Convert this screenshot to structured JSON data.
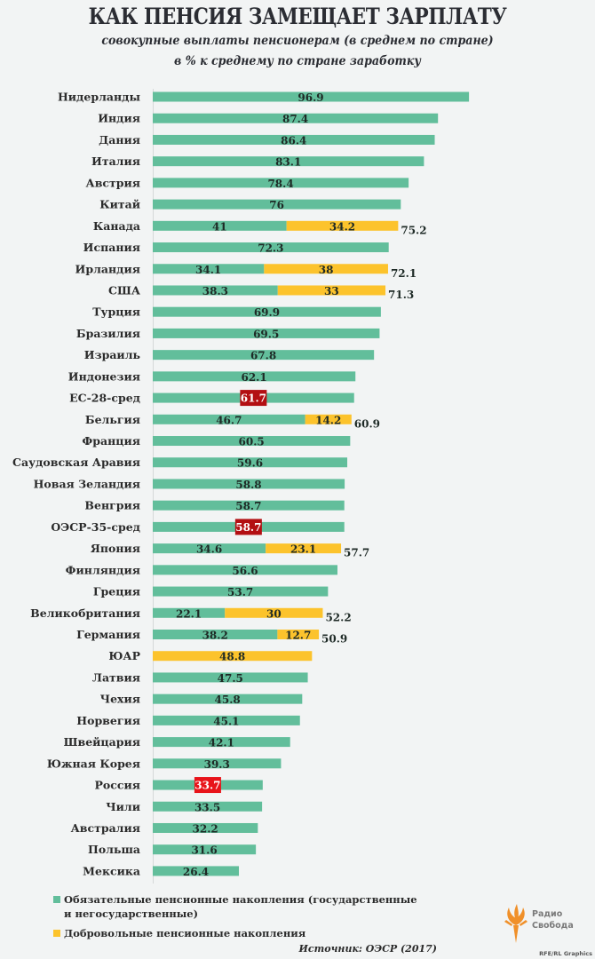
{
  "header": {
    "title": "КАК ПЕНСИЯ ЗАМЕЩАЕТ ЗАРПЛАТУ",
    "subtitle_line1": "совокупные выплаты пенсионерам (в среднем по стране)",
    "subtitle_line2": "в % к среднему по стране заработку"
  },
  "colors": {
    "mandatory": "#62be9b",
    "voluntary": "#fcc32c",
    "highlight_avg": "#b30f12",
    "highlight_russia": "#e8141a",
    "background": "#f2f4f4",
    "axis": "#d5d8d8"
  },
  "chart_data": {
    "type": "bar",
    "orientation": "horizontal",
    "stacked": true,
    "title": "КАК ПЕНСИЯ ЗАМЕЩАЕТ ЗАРПЛАТУ",
    "subtitle": "совокупные выплаты пенсионерам (в среднем по стране) в % к среднему по стране заработку",
    "xlabel": "",
    "ylabel": "",
    "xlim": [
      0,
      100
    ],
    "grid": false,
    "legend_position": "bottom-left",
    "series_names": [
      "Обязательные пенсионные накопления (государственные и негосударственные)",
      "Добровольные пенсионные накопления"
    ],
    "rows": [
      {
        "name": "Нидерланды",
        "mandatory": 96.9,
        "voluntary": null,
        "total": null,
        "highlight": null
      },
      {
        "name": "Индия",
        "mandatory": 87.4,
        "voluntary": null,
        "total": null,
        "highlight": null
      },
      {
        "name": "Дания",
        "mandatory": 86.4,
        "voluntary": null,
        "total": null,
        "highlight": null
      },
      {
        "name": "Италия",
        "mandatory": 83.1,
        "voluntary": null,
        "total": null,
        "highlight": null
      },
      {
        "name": "Австрия",
        "mandatory": 78.4,
        "voluntary": null,
        "total": null,
        "highlight": null
      },
      {
        "name": "Китай",
        "mandatory": 76,
        "voluntary": null,
        "total": null,
        "highlight": null
      },
      {
        "name": "Канада",
        "mandatory": 41,
        "voluntary": 34.2,
        "total": 75.2,
        "highlight": null
      },
      {
        "name": "Испания",
        "mandatory": 72.3,
        "voluntary": null,
        "total": null,
        "highlight": null
      },
      {
        "name": "Ирландия",
        "mandatory": 34.1,
        "voluntary": 38,
        "total": 72.1,
        "highlight": null
      },
      {
        "name": "США",
        "mandatory": 38.3,
        "voluntary": 33,
        "total": 71.3,
        "highlight": null
      },
      {
        "name": "Турция",
        "mandatory": 69.9,
        "voluntary": null,
        "total": null,
        "highlight": null
      },
      {
        "name": "Бразилия",
        "mandatory": 69.5,
        "voluntary": null,
        "total": null,
        "highlight": null
      },
      {
        "name": "Израиль",
        "mandatory": 67.8,
        "voluntary": null,
        "total": null,
        "highlight": null
      },
      {
        "name": "Индонезия",
        "mandatory": 62.1,
        "voluntary": null,
        "total": null,
        "highlight": null
      },
      {
        "name": "ЕС-28-сред",
        "mandatory": 61.7,
        "voluntary": null,
        "total": null,
        "highlight": "avg"
      },
      {
        "name": "Бельгия",
        "mandatory": 46.7,
        "voluntary": 14.2,
        "total": 60.9,
        "highlight": null
      },
      {
        "name": "Франция",
        "mandatory": 60.5,
        "voluntary": null,
        "total": null,
        "highlight": null
      },
      {
        "name": "Саудовская Аравия",
        "mandatory": 59.6,
        "voluntary": null,
        "total": null,
        "highlight": null
      },
      {
        "name": "Новая Зеландия",
        "mandatory": 58.8,
        "voluntary": null,
        "total": null,
        "highlight": null
      },
      {
        "name": "Венгрия",
        "mandatory": 58.7,
        "voluntary": null,
        "total": null,
        "highlight": null
      },
      {
        "name": "ОЭСР-35-сред",
        "mandatory": 58.7,
        "voluntary": null,
        "total": null,
        "highlight": "avg"
      },
      {
        "name": "Япония",
        "mandatory": 34.6,
        "voluntary": 23.1,
        "total": 57.7,
        "highlight": null
      },
      {
        "name": "Финляндия",
        "mandatory": 56.6,
        "voluntary": null,
        "total": null,
        "highlight": null
      },
      {
        "name": "Греция",
        "mandatory": 53.7,
        "voluntary": null,
        "total": null,
        "highlight": null
      },
      {
        "name": "Великобритания",
        "mandatory": 22.1,
        "voluntary": 30,
        "total": 52.2,
        "highlight": null
      },
      {
        "name": "Германия",
        "mandatory": 38.2,
        "voluntary": 12.7,
        "total": 50.9,
        "highlight": null
      },
      {
        "name": "ЮАР",
        "mandatory": null,
        "voluntary": 48.8,
        "total": null,
        "highlight": null
      },
      {
        "name": "Латвия",
        "mandatory": 47.5,
        "voluntary": null,
        "total": null,
        "highlight": null
      },
      {
        "name": "Чехия",
        "mandatory": 45.8,
        "voluntary": null,
        "total": null,
        "highlight": null
      },
      {
        "name": "Норвегия",
        "mandatory": 45.1,
        "voluntary": null,
        "total": null,
        "highlight": null
      },
      {
        "name": "Швейцария",
        "mandatory": 42.1,
        "voluntary": null,
        "total": null,
        "highlight": null
      },
      {
        "name": "Южная Корея",
        "mandatory": 39.3,
        "voluntary": null,
        "total": null,
        "highlight": null
      },
      {
        "name": "Россия",
        "mandatory": 33.7,
        "voluntary": null,
        "total": null,
        "highlight": "russia"
      },
      {
        "name": "Чили",
        "mandatory": 33.5,
        "voluntary": null,
        "total": null,
        "highlight": null
      },
      {
        "name": "Австралия",
        "mandatory": 32.2,
        "voluntary": null,
        "total": null,
        "highlight": null
      },
      {
        "name": "Польша",
        "mandatory": 31.6,
        "voluntary": null,
        "total": null,
        "highlight": null
      },
      {
        "name": "Мексика",
        "mandatory": 26.4,
        "voluntary": null,
        "total": null,
        "highlight": null
      }
    ]
  },
  "legend": {
    "items": [
      {
        "label": "Обязательные пенсионные накопления (государственные и негосударственные)",
        "color": "#62be9b"
      },
      {
        "label": "Добровольные пенсионные накопления",
        "color": "#fcc32c"
      }
    ]
  },
  "footer": {
    "source": "Источник: ОЭСР (2017)",
    "logo_line1": "Радио",
    "logo_line2": "Свобода",
    "credit": "RFE/RL Graphics"
  }
}
